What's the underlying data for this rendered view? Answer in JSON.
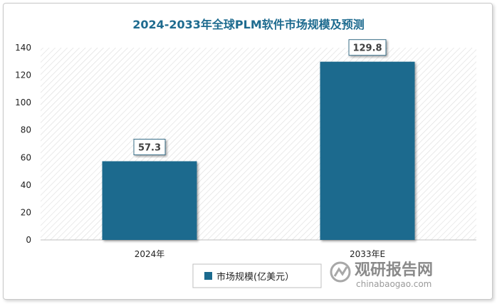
{
  "chart_data": {
    "type": "bar",
    "title": "2024-2033年全球PLM软件市场规模及预测",
    "categories": [
      "2024年",
      "2033年E"
    ],
    "series": [
      {
        "name": "市场规模(亿美元）",
        "values": [
          57.3,
          129.8
        ]
      }
    ],
    "data_labels": [
      "57.3",
      "129.8"
    ],
    "ylim": [
      0,
      140
    ],
    "yticks": [
      0,
      20,
      40,
      60,
      80,
      100,
      120,
      140
    ],
    "xlabel": "",
    "ylabel": "",
    "grid": false,
    "legend": "bottom-center",
    "colors": {
      "bar": "#1b6a8e",
      "title": "#1e6b8f",
      "plot_hatch": "#d9d9d9"
    }
  },
  "watermark": {
    "cn": "观研报告网",
    "en": "chinabaogao.com"
  }
}
